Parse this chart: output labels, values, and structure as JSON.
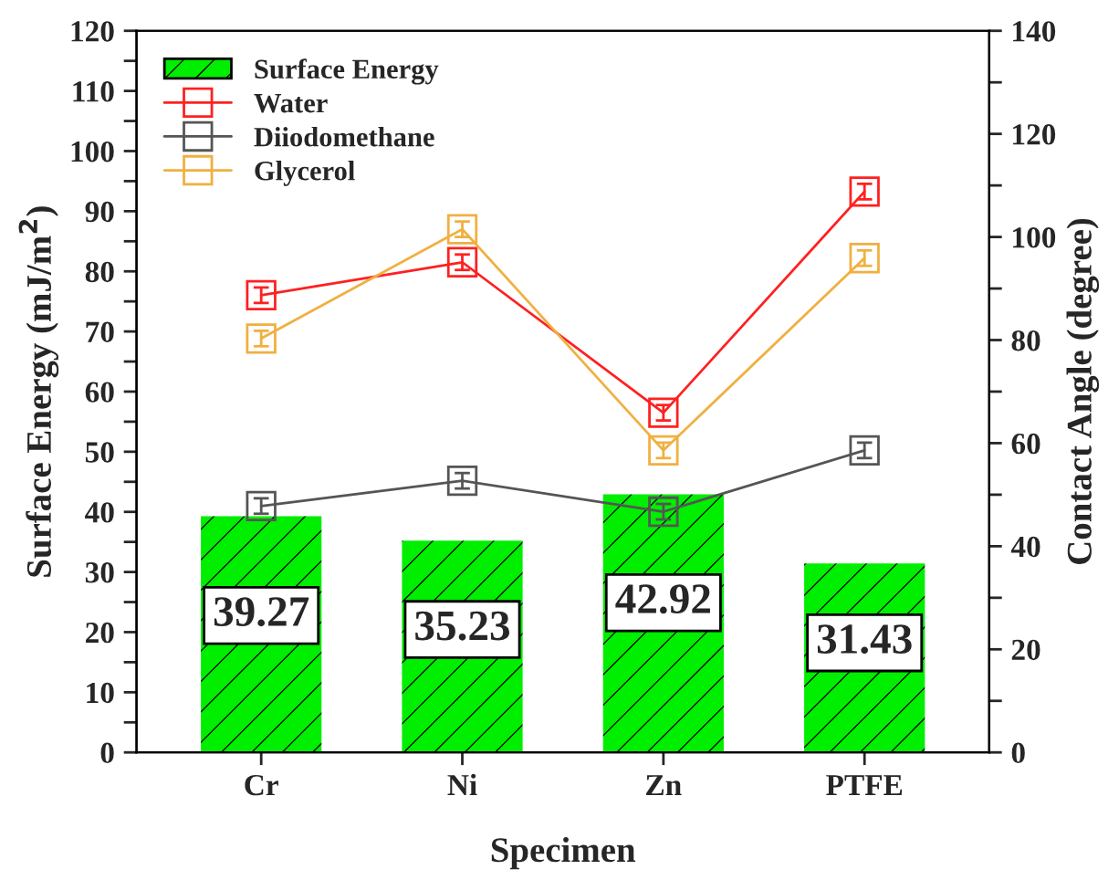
{
  "chart_data": {
    "type": "bar",
    "xlabel": "Specimen",
    "ylabel": "Surface Energy (mJ/m$^{2}$)",
    "y2label": "Contact Angle (degree)",
    "categories": [
      "Cr",
      "Ni",
      "Zn",
      "PTFE"
    ],
    "series": [
      {
        "name": "Surface Energy",
        "color": "#00ee00",
        "values": [
          39.27,
          35.23,
          42.92,
          31.43
        ],
        "value_labels": [
          "39.27",
          "35.23",
          "42.92",
          "31.43"
        ]
      },
      {
        "name": "Water",
        "type": "line",
        "axis": "y2",
        "color": "#ff2020",
        "values": [
          88.7,
          95.1,
          65.9,
          108.8
        ],
        "errors": [
          1.5,
          1.5,
          1.5,
          1.5
        ]
      },
      {
        "name": "Diiodomethane",
        "type": "line",
        "axis": "y2",
        "color": "#555555",
        "values": [
          47.8,
          52.7,
          46.7,
          58.6
        ],
        "errors": [
          1.5,
          1.5,
          1.5,
          1.5
        ]
      },
      {
        "name": "Glycerol",
        "type": "line",
        "axis": "y2",
        "color": "#f0b040",
        "values": [
          80.3,
          101.5,
          58.6,
          95.9
        ],
        "errors": [
          1.5,
          1.5,
          1.5,
          1.5
        ]
      }
    ],
    "ylim": [
      0,
      120
    ],
    "yticks": [
      0,
      {
        "value": 5,
        "label": null
      },
      10,
      {
        "value": 15,
        "label": null
      },
      20,
      {
        "value": 25,
        "label": null
      },
      30,
      {
        "value": 35,
        "label": null
      },
      40,
      {
        "value": 45,
        "label": null
      },
      50,
      {
        "value": 55,
        "label": null
      },
      60,
      {
        "value": 65,
        "label": null
      },
      70,
      {
        "value": 75,
        "label": null
      },
      80,
      {
        "value": 85,
        "label": null
      },
      90,
      {
        "value": 95,
        "label": null
      },
      100,
      {
        "value": 105,
        "label": null
      },
      110,
      {
        "value": 115,
        "label": null
      },
      120
    ],
    "y2lim": [
      0,
      140
    ],
    "y2ticks": [
      0,
      {
        "value": 10,
        "label": null
      },
      20,
      {
        "value": 30,
        "label": null
      },
      40,
      {
        "value": 50,
        "label": null
      },
      60,
      {
        "value": 70,
        "label": null
      },
      80,
      {
        "value": 90,
        "label": null
      },
      100,
      {
        "value": 110,
        "label": null
      },
      120,
      {
        "value": 130,
        "label": null
      },
      140
    ],
    "marker": "square",
    "line_style": "solid",
    "grid": false,
    "legend": "top left"
  }
}
